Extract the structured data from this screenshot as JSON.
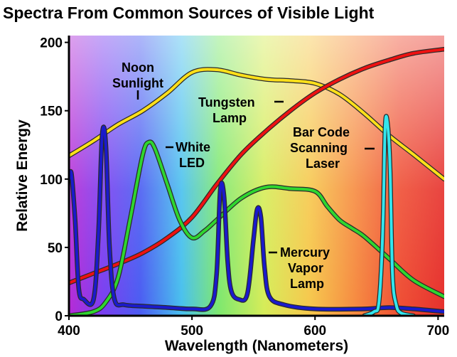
{
  "chart_data": {
    "type": "line",
    "title": "Spectra From  Common Sources of Visible  Light",
    "xlabel": "Wavelength (Nanometers)",
    "ylabel": "Relative Energy",
    "xlim": [
      400,
      705
    ],
    "ylim": [
      0,
      205
    ],
    "x_ticks": [
      "400",
      "500",
      "600",
      "700"
    ],
    "y_ticks": [
      "0",
      "50",
      "100",
      "150",
      "200"
    ],
    "background": "visible-spectrum gradient",
    "series": [
      {
        "name": "Noon Sunlight",
        "label_lines": [
          "Noon",
          "Sunlight"
        ],
        "color": "#ffe01a",
        "x": [
          400,
          420,
          440,
          460,
          480,
          500,
          520,
          540,
          560,
          580,
          600,
          620,
          640,
          660,
          680,
          705
        ],
        "y": [
          117,
          128,
          140,
          150,
          163,
          178,
          180,
          176,
          173,
          172,
          170,
          162,
          148,
          132,
          118,
          100
        ]
      },
      {
        "name": "Tungsten Lamp",
        "label_lines": [
          "Tungsten",
          "Lamp"
        ],
        "color": "#ee1111",
        "x": [
          400,
          420,
          440,
          460,
          480,
          500,
          520,
          540,
          560,
          580,
          600,
          620,
          640,
          660,
          680,
          705
        ],
        "y": [
          24,
          31,
          38,
          46,
          57,
          72,
          96,
          118,
          135,
          150,
          163,
          173,
          181,
          187,
          192,
          195
        ]
      },
      {
        "name": "White LED",
        "label_lines": [
          "White",
          "LED"
        ],
        "color": "#2fd62f",
        "x": [
          400,
          420,
          430,
          440,
          450,
          460,
          465,
          470,
          480,
          490,
          500,
          510,
          520,
          540,
          560,
          580,
          600,
          610,
          620,
          630,
          640,
          660,
          680,
          705
        ],
        "y": [
          0,
          3,
          10,
          28,
          72,
          118,
          127,
          122,
          96,
          70,
          57,
          62,
          70,
          86,
          94,
          93,
          91,
          80,
          70,
          64,
          58,
          42,
          26,
          14
        ]
      },
      {
        "name": "Mercury Vapor Lamp",
        "label_lines": [
          "Mercury",
          "Vapor",
          "Lamp"
        ],
        "color": "#1a1acc",
        "x": [
          400,
          402,
          405,
          408,
          412,
          420,
          424,
          427,
          430,
          433,
          437,
          445,
          460,
          480,
          500,
          515,
          520,
          523,
          526,
          529,
          532,
          538,
          545,
          550,
          553,
          556,
          559,
          563,
          575,
          600,
          640,
          660,
          680,
          705
        ],
        "y": [
          100,
          104,
          70,
          20,
          12,
          12,
          60,
          132,
          125,
          50,
          12,
          8,
          7,
          6,
          5,
          7,
          30,
          92,
          88,
          40,
          18,
          12,
          16,
          56,
          78,
          72,
          35,
          14,
          8,
          5,
          5,
          6,
          5,
          3
        ]
      },
      {
        "name": "Bar Code Scanning Laser",
        "label_lines": [
          "Bar Code",
          "Scanning",
          "Laser"
        ],
        "color": "#33e6ee",
        "x": [
          640,
          648,
          652,
          655,
          657,
          659,
          661,
          663,
          666,
          670,
          680
        ],
        "y": [
          0,
          3,
          10,
          60,
          138,
          140,
          108,
          30,
          8,
          2,
          0
        ]
      }
    ]
  }
}
